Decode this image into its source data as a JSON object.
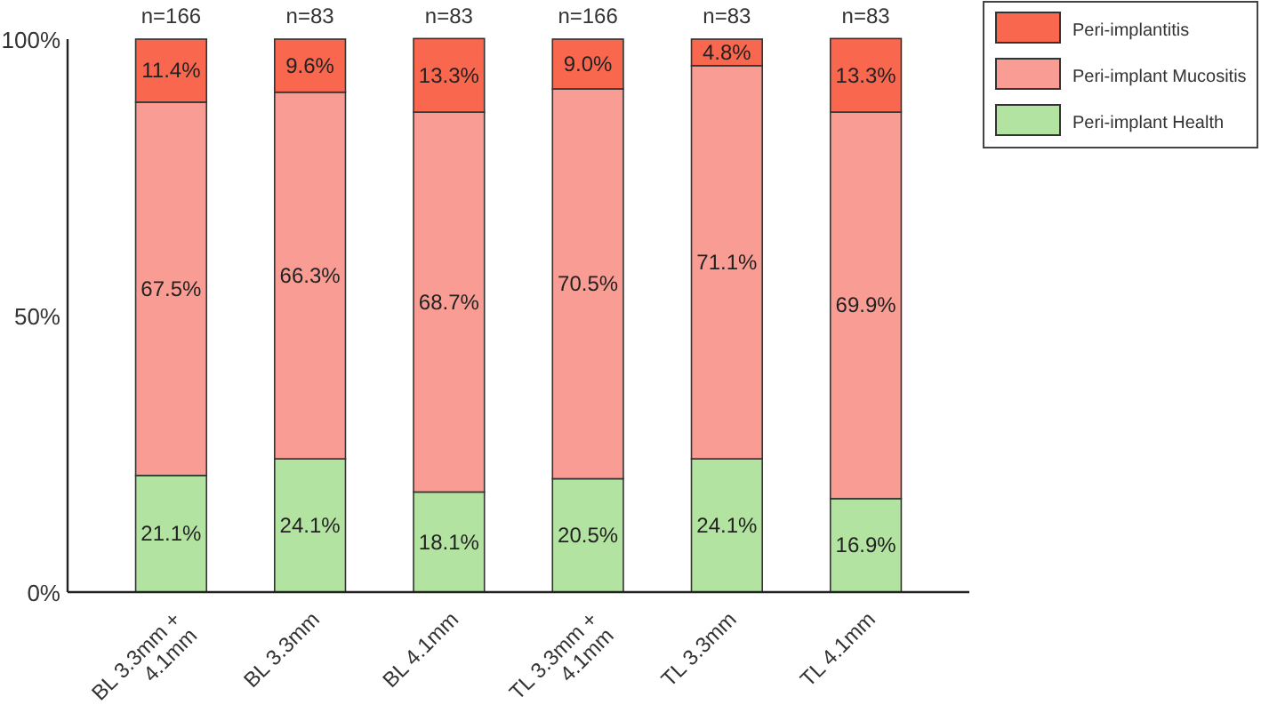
{
  "chart_data": {
    "type": "bar",
    "stacked": true,
    "categories": [
      "BL 3.3mm + 4.1mm",
      "BL 3.3mm",
      "BL 4.1mm",
      "TL 3.3mm + 4.1mm",
      "TL 3.3mm",
      "TL 4.1mm"
    ],
    "series": [
      {
        "name": "Peri-implant Health",
        "color": "#b3e3a0",
        "values": [
          21.1,
          24.1,
          18.1,
          20.5,
          24.1,
          16.9
        ],
        "value_labels": [
          "21.1%",
          "24.1%",
          "18.1%",
          "20.5%",
          "24.1%",
          "16.9%"
        ]
      },
      {
        "name": "Peri-implant Mucositis",
        "color": "#f99d94",
        "values": [
          67.5,
          66.3,
          68.7,
          70.5,
          71.1,
          69.9
        ],
        "value_labels": [
          "67.5%",
          "66.3%",
          "68.7%",
          "70.5%",
          "71.1%",
          "69.9%"
        ]
      },
      {
        "name": "Peri-implantitis",
        "color": "#f9674f",
        "values": [
          11.4,
          9.6,
          13.3,
          9.0,
          4.8,
          13.3
        ],
        "value_labels": [
          "11.4%",
          "9.6%",
          "13.3%",
          "9.0%",
          "4.8%",
          "13.3%"
        ]
      }
    ],
    "ylim": [
      0,
      100
    ],
    "yticks": [
      {
        "value": 0,
        "label": "0%"
      },
      {
        "value": 50,
        "label": "50%"
      },
      {
        "value": 100,
        "label": "100%"
      }
    ],
    "legend": "top right",
    "annotations": [
      {
        "text": "n=166",
        "x": "BL 3.3mm + 4.1mm",
        "y": 100
      },
      {
        "text": "n=83",
        "x": "BL 3.3mm",
        "y": 100
      },
      {
        "text": "n=83",
        "x": "BL 4.1mm",
        "y": 100
      },
      {
        "text": "n=166",
        "x": "TL 3.3mm + 4.1mm",
        "y": 100
      },
      {
        "text": "n=83",
        "x": "TL 3.3mm",
        "y": 100
      },
      {
        "text": "n=83",
        "x": "TL 4.1mm",
        "y": 100
      }
    ]
  }
}
